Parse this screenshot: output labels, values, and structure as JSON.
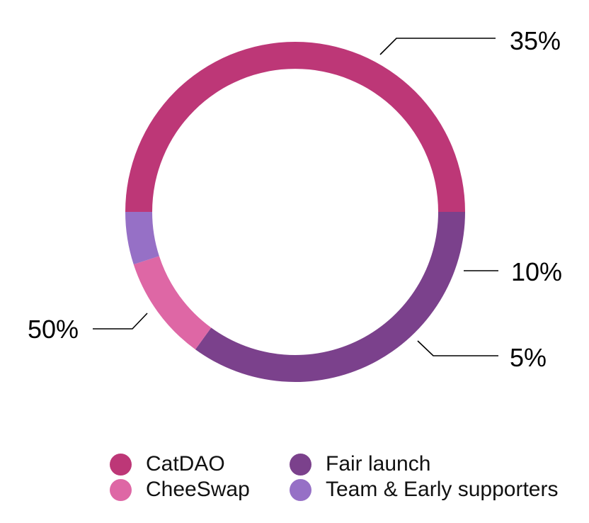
{
  "chart_data": {
    "type": "pie",
    "variant": "donut",
    "slices": [
      {
        "label": "Fair launch",
        "value": 35,
        "value_label": "35%",
        "color": "#7b418c"
      },
      {
        "label": "CheeSwap",
        "value": 10,
        "value_label": "10%",
        "color": "#de67a5"
      },
      {
        "label": "Team & Early supporters",
        "value": 5,
        "value_label": "5%",
        "color": "#9670c6"
      },
      {
        "label": "CatDAO",
        "value": 50,
        "value_label": "50%",
        "color": "#bd3777"
      }
    ],
    "legend_order": [
      "CatDAO",
      "Fair launch",
      "CheeSwap",
      "Team & Early supporters"
    ],
    "legend_position": "bottom",
    "title": ""
  }
}
